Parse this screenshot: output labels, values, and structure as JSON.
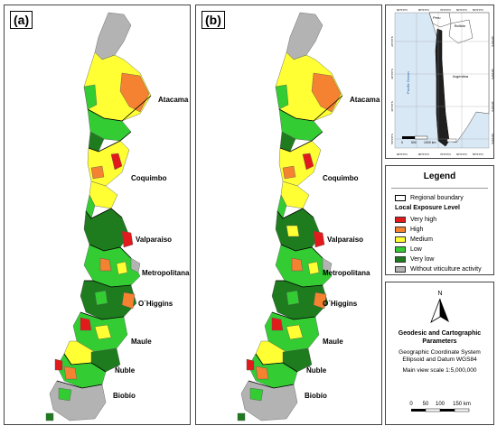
{
  "panels": [
    {
      "label": "(a)",
      "regions": [
        "Atacama",
        "Coquimbo",
        "Valparaiso",
        "Metropolitana",
        "O´Higgins",
        "Maule",
        "Ñuble",
        "Biobío"
      ]
    },
    {
      "label": "(b)",
      "regions": [
        "Atacama",
        "Coquimbo",
        "Valparaiso",
        "Metropolitana",
        "O´Higgins",
        "Maule",
        "Ñuble",
        "Biobío"
      ]
    }
  ],
  "inset": {
    "countries": [
      "Peru",
      "Bolivia",
      "Argentina"
    ],
    "ocean": "Pacific Ocean",
    "lon_ticks": [
      "90°0'0\"O",
      "80°0'0\"O",
      "70°0'0\"O",
      "60°0'0\"O",
      "50°0'0\"O"
    ],
    "lat_ticks": [
      "20°0'0\"S",
      "30°0'0\"S",
      "40°0'0\"S",
      "50°0'0\"S"
    ],
    "scale_labels": [
      "0",
      "500",
      "1000 km"
    ]
  },
  "legend": {
    "title": "Legend",
    "boundary_label": "Regional boundary",
    "subtitle": "Local Exposure Level",
    "levels": [
      {
        "label": "Very high",
        "color": "#e31a1c"
      },
      {
        "label": "High",
        "color": "#f58231"
      },
      {
        "label": "Medium",
        "color": "#ffff33"
      },
      {
        "label": "Low",
        "color": "#33cc33"
      },
      {
        "label": "Very low",
        "color": "#1e7b1e"
      },
      {
        "label": "Without viticulture activity",
        "color": "#b3b3b3"
      }
    ]
  },
  "params": {
    "north": "N",
    "title": "Geodesic and Cartographic Parameters",
    "coord_system": "Geographic Coordinate System",
    "datum": "Ellipsoid and Datum WGS84",
    "scale": "Main view scale 1:5,000,000",
    "scale_labels": [
      "0",
      "50",
      "100",
      "150 km"
    ]
  },
  "colors": {
    "land_outside": "#ffffff",
    "inset_chile": "#1f1f1f",
    "inset_other": "#ffffff"
  }
}
